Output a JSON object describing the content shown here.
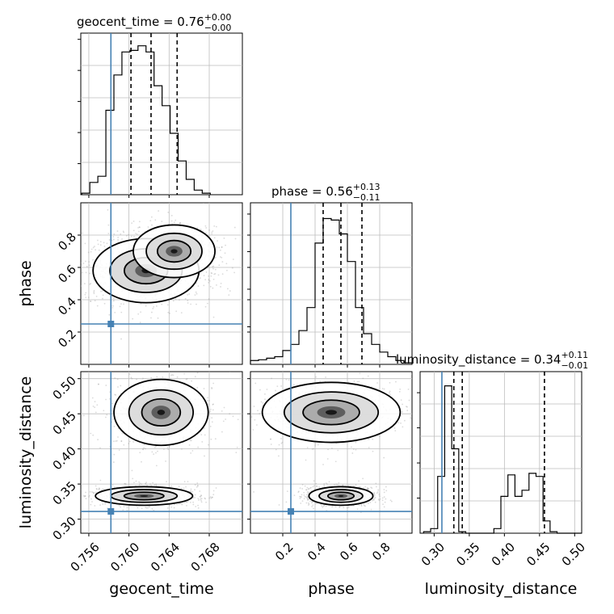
{
  "chart_data": {
    "type": "corner",
    "parameters": [
      {
        "name": "geocent_time",
        "truth": 0.7582,
        "range": [
          0.7552,
          0.7713
        ],
        "ticks": [
          0.756,
          0.76,
          0.764,
          0.768
        ],
        "tick_labels": [
          "0.756",
          "0.760",
          "0.764",
          "0.768"
        ],
        "median": 0.7622,
        "q_low": 0.7602,
        "q_high": 0.7648,
        "title": {
          "base": "geocent_time = 0.76",
          "sup": "+0.00",
          "sub": "−0.00"
        }
      },
      {
        "name": "phase",
        "truth": 0.25,
        "range": [
          0.0,
          1.0
        ],
        "ticks": [
          0.2,
          0.4,
          0.6,
          0.8
        ],
        "tick_labels": [
          "0.2",
          "0.4",
          "0.6",
          "0.8"
        ],
        "median": 0.56,
        "q_low": 0.45,
        "q_high": 0.69,
        "title": {
          "base": "phase = 0.56",
          "sup": "+0.13",
          "sub": "−0.11"
        }
      },
      {
        "name": "luminosity_distance",
        "truth": 0.311,
        "range": [
          0.28,
          0.51
        ],
        "ticks": [
          0.3,
          0.35,
          0.4,
          0.45,
          0.5
        ],
        "tick_labels": [
          "0.30",
          "0.35",
          "0.40",
          "0.45",
          "0.50"
        ],
        "median": 0.34,
        "q_low": 0.328,
        "q_high": 0.457,
        "title": {
          "base": "luminosity_distance = 0.34",
          "sup": "+0.11",
          "sub": "−0.01"
        }
      }
    ],
    "histograms": {
      "geocent_time": {
        "edges_start": 0.7553,
        "bin_width": 0.0008,
        "counts": [
          0.01,
          0.08,
          0.12,
          0.55,
          0.78,
          0.93,
          0.94,
          0.97,
          0.93,
          0.71,
          0.58,
          0.4,
          0.22,
          0.1,
          0.03,
          0.01
        ]
      },
      "phase": {
        "edges_start": 0.0,
        "bin_width": 0.05,
        "counts": [
          0.025,
          0.03,
          0.04,
          0.05,
          0.09,
          0.13,
          0.22,
          0.37,
          0.79,
          0.95,
          0.94,
          0.85,
          0.67,
          0.37,
          0.2,
          0.13,
          0.08,
          0.05,
          0.025,
          0.01
        ]
      },
      "luminosity_distance": {
        "edges_start": 0.285,
        "bin_width": 0.01,
        "counts": [
          0.01,
          0.03,
          0.37,
          0.96,
          0.55,
          0.01,
          0.0,
          0.0,
          0.0,
          0.0,
          0.03,
          0.24,
          0.38,
          0.24,
          0.28,
          0.39,
          0.37,
          0.08,
          0.01,
          0.0,
          0.0,
          0.0,
          0.0
        ]
      }
    },
    "pairs": [
      {
        "x": "geocent_time",
        "y": "phase",
        "modes": [
          {
            "cx": 0.7617,
            "cy": 0.58,
            "sx": 0.0024,
            "sy": 0.09,
            "w": 1.0
          },
          {
            "cx": 0.7645,
            "cy": 0.7,
            "sx": 0.002,
            "sy": 0.08,
            "w": 0.5
          }
        ]
      },
      {
        "x": "geocent_time",
        "y": "luminosity_distance",
        "modes": [
          {
            "cx": 0.7615,
            "cy": 0.333,
            "sx": 0.0022,
            "sy": 0.006,
            "w": 1.0
          },
          {
            "cx": 0.7632,
            "cy": 0.452,
            "sx": 0.0022,
            "sy": 0.022,
            "w": 0.8
          }
        ]
      },
      {
        "x": "phase",
        "y": "luminosity_distance",
        "modes": [
          {
            "cx": 0.56,
            "cy": 0.333,
            "sx": 0.09,
            "sy": 0.006,
            "w": 1.0
          },
          {
            "cx": 0.5,
            "cy": 0.452,
            "sx": 0.2,
            "sy": 0.02,
            "w": 0.8
          }
        ]
      }
    ],
    "colors": {
      "truth": "#4682b4",
      "hist": "#000000",
      "grid": "#bdbdbd",
      "scatter": "#999999"
    },
    "grid": true
  }
}
